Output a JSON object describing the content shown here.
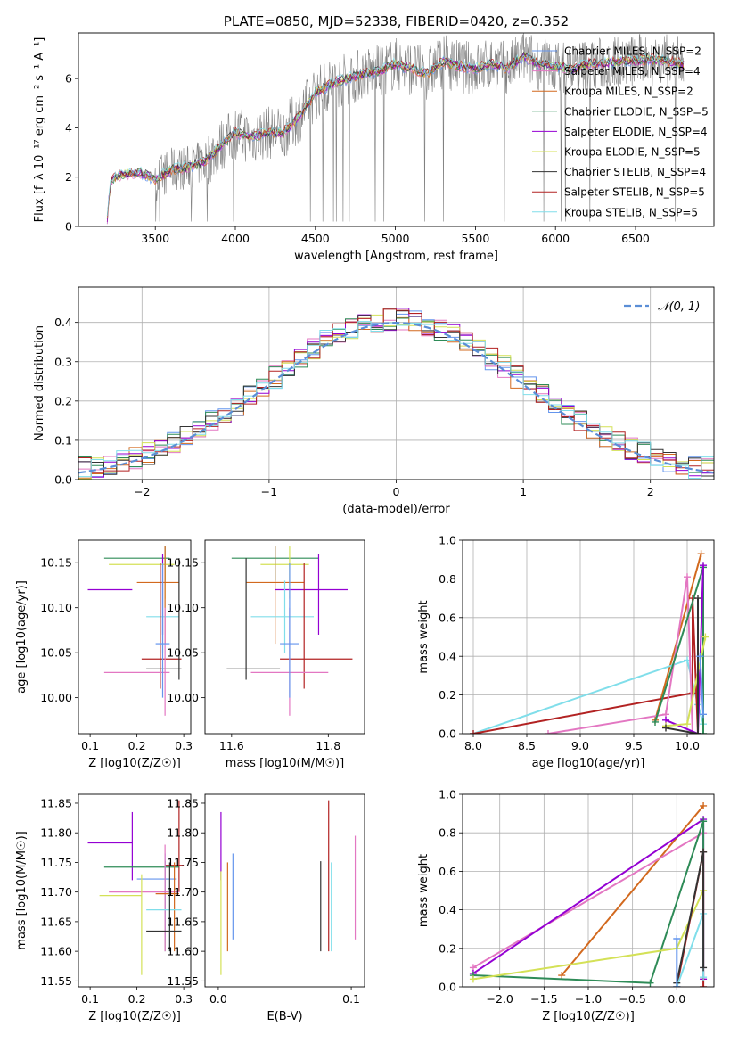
{
  "chart_data": [
    {
      "type": "line",
      "panel": "spectrum",
      "title": "PLATE=0850, MJD=52338, FIBERID=0420, z=0.352",
      "xlabel": "wavelength [Angstrom, rest frame]",
      "ylabel": "Flux [f_λ 10⁻¹⁷ erg cm⁻² s⁻¹ A⁻¹]",
      "xlim": [
        3020,
        6990
      ],
      "ylim": [
        0,
        7.85
      ],
      "x_ticks": [
        3500,
        4000,
        4500,
        5000,
        5500,
        6000,
        6500
      ],
      "y_ticks": [
        0,
        2,
        4,
        6
      ],
      "grid": false,
      "legend_position": "upper right",
      "data_color": "#808080",
      "continuum": {
        "x": [
          3200,
          3215,
          3230,
          3300,
          3400,
          3500,
          3600,
          3700,
          3800,
          3900,
          4000,
          4100,
          4200,
          4300,
          4400,
          4500,
          4600,
          4700,
          4800,
          4900,
          5000,
          5100,
          5200,
          5300,
          5400,
          5500,
          5600,
          5700,
          5800,
          5900,
          6000,
          6100,
          6200,
          6300,
          6400,
          6500,
          6600,
          6700,
          6800
        ],
        "y": [
          0.3,
          1.5,
          1.9,
          2.1,
          2.2,
          1.9,
          2.3,
          2.4,
          2.6,
          3.2,
          3.8,
          3.6,
          3.8,
          3.8,
          4.5,
          5.4,
          5.8,
          6.0,
          6.2,
          6.3,
          6.6,
          6.4,
          6.2,
          6.7,
          6.5,
          6.4,
          6.6,
          6.4,
          6.9,
          6.6,
          6.5,
          6.4,
          6.6,
          6.6,
          6.7,
          6.7,
          6.8,
          6.7,
          6.6
        ]
      },
      "series": [
        {
          "name": "Chabrier MILES, N_SSP=2",
          "color": "#6495ed"
        },
        {
          "name": "Salpeter MILES, N_SSP=4",
          "color": "#e377c2"
        },
        {
          "name": "Kroupa MILES, N_SSP=2",
          "color": "#d2691e"
        },
        {
          "name": "Chabrier ELODIE, N_SSP=5",
          "color": "#2e8b57"
        },
        {
          "name": "Salpeter ELODIE, N_SSP=4",
          "color": "#9400d3"
        },
        {
          "name": "Kroupa ELODIE, N_SSP=5",
          "color": "#d4e157"
        },
        {
          "name": "Chabrier STELIB, N_SSP=4",
          "color": "#333333"
        },
        {
          "name": "Salpeter STELIB, N_SSP=5",
          "color": "#b22222"
        },
        {
          "name": "Kroupa STELIB, N_SSP=5",
          "color": "#80deea"
        }
      ]
    },
    {
      "type": "step",
      "panel": "residuals",
      "xlabel": "(data-model)/error",
      "ylabel": "Normed distribution",
      "xlim": [
        -2.5,
        2.5
      ],
      "ylim": [
        0,
        0.49
      ],
      "x_ticks": [
        -2,
        -1,
        0,
        1,
        2
      ],
      "y_ticks": [
        0.0,
        0.1,
        0.2,
        0.3,
        0.4
      ],
      "grid": true,
      "legend_position": "upper right",
      "normal_label": "𝒩(0, 1)",
      "normal_color": "#5b8ed6",
      "bin_width": 0.1
    },
    {
      "type": "errorbar",
      "panel": "age-vs-Z",
      "xlabel": "Z [log10(Z/Z☉)]",
      "ylabel": "age  [log10(age/yr)]",
      "xlim": [
        0.075,
        0.315
      ],
      "ylim": [
        9.96,
        10.175
      ],
      "x_ticks": [
        0.1,
        0.2,
        0.3
      ],
      "y_ticks": [
        10.0,
        10.05,
        10.1,
        10.15
      ],
      "points": [
        {
          "x": 0.26,
          "y": 10.155,
          "xerr": [
            0.13,
            0.27
          ],
          "yerr": [
            10.13,
            10.168
          ],
          "color": "#2e8b57"
        },
        {
          "x": 0.26,
          "y": 10.148,
          "xerr": [
            0.14,
            0.28
          ],
          "yerr": [
            10.11,
            10.16
          ],
          "color": "#d4e157"
        },
        {
          "x": 0.26,
          "y": 10.128,
          "xerr": [
            0.2,
            0.29
          ],
          "yerr": [
            10.06,
            10.168
          ],
          "color": "#d2691e"
        },
        {
          "x": 0.255,
          "y": 10.12,
          "xerr": [
            0.095,
            0.19
          ],
          "yerr": [
            10.07,
            10.16
          ],
          "color": "#9400d3"
        },
        {
          "x": 0.255,
          "y": 10.09,
          "xerr": [
            0.22,
            0.29
          ],
          "yerr": [
            10.05,
            10.13
          ],
          "color": "#80deea"
        },
        {
          "x": 0.25,
          "y": 10.043,
          "xerr": [
            0.21,
            0.295
          ],
          "yerr": [
            10.01,
            10.15
          ],
          "color": "#b22222"
        },
        {
          "x": 0.29,
          "y": 10.032,
          "xerr": [
            0.22,
            0.295
          ],
          "yerr": [
            10.02,
            10.155
          ],
          "color": "#333333"
        },
        {
          "x": 0.26,
          "y": 10.028,
          "xerr": [
            0.13,
            0.27
          ],
          "yerr": [
            9.98,
            10.1
          ],
          "color": "#e377c2"
        },
        {
          "x": 0.255,
          "y": 10.06,
          "xerr": [
            0.24,
            0.27
          ],
          "yerr": [
            10.0,
            10.15
          ],
          "color": "#6495ed"
        }
      ]
    },
    {
      "type": "errorbar",
      "panel": "age-vs-mass",
      "xlabel": "mass [log10(M/M☉)]",
      "xlim": [
        11.545,
        11.875
      ],
      "ylim": [
        9.96,
        10.175
      ],
      "x_ticks": [
        11.6,
        11.8
      ],
      "y_ticks": [
        10.0,
        10.05,
        10.1,
        10.15
      ],
      "points": [
        {
          "x": 11.69,
          "y": 10.155,
          "xerr": [
            11.6,
            11.78
          ],
          "yerr": [
            10.13,
            10.168
          ],
          "color": "#2e8b57"
        },
        {
          "x": 11.72,
          "y": 10.148,
          "xerr": [
            11.66,
            11.76
          ],
          "yerr": [
            10.11,
            10.168
          ],
          "color": "#d4e157"
        },
        {
          "x": 11.69,
          "y": 10.128,
          "xerr": [
            11.63,
            11.75
          ],
          "yerr": [
            10.06,
            10.168
          ],
          "color": "#d2691e"
        },
        {
          "x": 11.78,
          "y": 10.12,
          "xerr": [
            11.69,
            11.84
          ],
          "yerr": [
            10.07,
            10.16
          ],
          "color": "#9400d3"
        },
        {
          "x": 11.71,
          "y": 10.09,
          "xerr": [
            11.64,
            11.77
          ],
          "yerr": [
            10.05,
            10.13
          ],
          "color": "#80deea"
        },
        {
          "x": 11.75,
          "y": 10.043,
          "xerr": [
            11.7,
            11.85
          ],
          "yerr": [
            10.01,
            10.15
          ],
          "color": "#b22222"
        },
        {
          "x": 11.63,
          "y": 10.032,
          "xerr": [
            11.59,
            11.7
          ],
          "yerr": [
            10.02,
            10.155
          ],
          "color": "#333333"
        },
        {
          "x": 11.72,
          "y": 10.028,
          "xerr": [
            11.64,
            11.8
          ],
          "yerr": [
            9.98,
            10.1
          ],
          "color": "#e377c2"
        },
        {
          "x": 11.72,
          "y": 10.06,
          "xerr": [
            11.7,
            11.74
          ],
          "yerr": [
            10.0,
            10.15
          ],
          "color": "#6495ed"
        }
      ]
    },
    {
      "type": "line",
      "panel": "massweight-vs-age",
      "xlabel": "age  [log10(age/yr)]",
      "ylabel": "mass weight",
      "xlim": [
        7.9,
        10.25
      ],
      "ylim": [
        0,
        1.0
      ],
      "x_ticks": [
        8.0,
        8.5,
        9.0,
        9.5,
        10.0
      ],
      "y_ticks": [
        0.0,
        0.2,
        0.4,
        0.6,
        0.8,
        1.0
      ],
      "grid": true,
      "series": [
        {
          "color": "#d2691e",
          "x": [
            9.7,
            10.13
          ],
          "y": [
            0.07,
            0.93
          ]
        },
        {
          "color": "#80deea",
          "x": [
            8.0,
            10.0,
            10.1,
            10.15
          ],
          "y": [
            0.0,
            0.38,
            0.15,
            0.05
          ]
        },
        {
          "color": "#b22222",
          "x": [
            8.0,
            10.05,
            10.05,
            10.1
          ],
          "y": [
            0.0,
            0.21,
            0.7,
            0.0
          ]
        },
        {
          "color": "#e377c2",
          "x": [
            8.7,
            9.8,
            10.0,
            10.05
          ],
          "y": [
            0.0,
            0.1,
            0.81,
            0.0
          ]
        },
        {
          "color": "#2e8b57",
          "x": [
            9.7,
            10.15,
            10.15
          ],
          "y": [
            0.06,
            0.86,
            0.0
          ]
        },
        {
          "color": "#9400d3",
          "x": [
            9.8,
            10.1,
            10.15
          ],
          "y": [
            0.07,
            0.0,
            0.87
          ]
        },
        {
          "color": "#d4e157",
          "x": [
            9.8,
            10.0,
            10.17
          ],
          "y": [
            0.04,
            0.05,
            0.5
          ]
        },
        {
          "color": "#333333",
          "x": [
            9.8,
            10.1,
            10.1
          ],
          "y": [
            0.03,
            0.0,
            0.7
          ]
        },
        {
          "color": "#6495ed",
          "x": [
            10.12,
            10.15
          ],
          "y": [
            0.4,
            0.1
          ]
        }
      ]
    },
    {
      "type": "errorbar",
      "panel": "mass-vs-Z",
      "xlabel": "Z [log10(Z/Z☉)]",
      "ylabel": "mass [log10(M/M☉)]",
      "xlim": [
        0.075,
        0.315
      ],
      "ylim": [
        11.54,
        11.865
      ],
      "x_ticks": [
        0.1,
        0.2,
        0.3
      ],
      "y_ticks": [
        11.55,
        11.6,
        11.65,
        11.7,
        11.75,
        11.8,
        11.85
      ],
      "points": [
        {
          "x": 0.19,
          "y": 11.783,
          "xerr": [
            0.095,
            0.19
          ],
          "yerr": [
            11.72,
            11.835
          ],
          "color": "#9400d3"
        },
        {
          "x": 0.29,
          "y": 11.745,
          "xerr": [
            0.26,
            0.3
          ],
          "yerr": [
            11.7,
            11.855
          ],
          "color": "#b22222"
        },
        {
          "x": 0.26,
          "y": 11.742,
          "xerr": [
            0.13,
            0.29
          ],
          "yerr": [
            11.6,
            11.752
          ],
          "color": "#2e8b57"
        },
        {
          "x": 0.26,
          "y": 11.722,
          "xerr": [
            0.2,
            0.285
          ],
          "yerr": [
            11.62,
            11.765
          ],
          "color": "#6495ed"
        },
        {
          "x": 0.26,
          "y": 11.7,
          "xerr": [
            0.14,
            0.29
          ],
          "yerr": [
            11.6,
            11.78
          ],
          "color": "#e377c2"
        },
        {
          "x": 0.21,
          "y": 11.694,
          "xerr": [
            0.12,
            0.21
          ],
          "yerr": [
            11.56,
            11.73
          ],
          "color": "#d4e157"
        },
        {
          "x": 0.28,
          "y": 11.697,
          "xerr": [
            0.24,
            0.29
          ],
          "yerr": [
            11.6,
            11.75
          ],
          "color": "#d2691e"
        },
        {
          "x": 0.27,
          "y": 11.67,
          "xerr": [
            0.22,
            0.295
          ],
          "yerr": [
            11.6,
            11.72
          ],
          "color": "#80deea"
        },
        {
          "x": 0.27,
          "y": 11.634,
          "xerr": [
            0.22,
            0.295
          ],
          "yerr": [
            11.6,
            11.75
          ],
          "color": "#333333"
        }
      ]
    },
    {
      "type": "errorbar",
      "panel": "mass-vs-EBV",
      "xlabel": "E(B-V)",
      "xlim": [
        -0.01,
        0.11
      ],
      "ylim": [
        11.54,
        11.865
      ],
      "x_ticks": [
        0.0,
        0.1
      ],
      "y_ticks": [
        11.55,
        11.6,
        11.65,
        11.7,
        11.75,
        11.8,
        11.85
      ],
      "points": [
        {
          "x": 0.002,
          "y": 11.78,
          "yerr": [
            11.72,
            11.835
          ],
          "color": "#9400d3"
        },
        {
          "x": 0.002,
          "y": 11.7,
          "yerr": [
            11.56,
            11.735
          ],
          "color": "#d4e157"
        },
        {
          "x": 0.007,
          "y": 11.7,
          "yerr": [
            11.6,
            11.75
          ],
          "color": "#d2691e"
        },
        {
          "x": 0.011,
          "y": 11.72,
          "yerr": [
            11.62,
            11.765
          ],
          "color": "#6495ed"
        },
        {
          "x": 0.077,
          "y": 11.68,
          "yerr": [
            11.6,
            11.752
          ],
          "color": "#333333"
        },
        {
          "x": 0.083,
          "y": 11.73,
          "yerr": [
            11.6,
            11.855
          ],
          "color": "#b22222"
        },
        {
          "x": 0.085,
          "y": 11.68,
          "yerr": [
            11.6,
            11.75
          ],
          "color": "#80deea"
        },
        {
          "x": 0.103,
          "y": 11.72,
          "yerr": [
            11.62,
            11.795
          ],
          "color": "#e377c2"
        }
      ]
    },
    {
      "type": "line",
      "panel": "massweight-vs-Z",
      "xlabel": "Z [log10(Z/Z☉)]",
      "ylabel": "mass weight",
      "xlim": [
        -2.42,
        0.42
      ],
      "ylim": [
        0,
        1.0
      ],
      "x_ticks": [
        -2.0,
        -1.5,
        -1.0,
        -0.5,
        0.0
      ],
      "y_ticks": [
        0.0,
        0.2,
        0.4,
        0.6,
        0.8,
        1.0
      ],
      "grid": true,
      "series": [
        {
          "color": "#d2691e",
          "x": [
            -1.3,
            0.3
          ],
          "y": [
            0.06,
            0.94
          ]
        },
        {
          "color": "#e377c2",
          "x": [
            -2.3,
            0.3
          ],
          "y": [
            0.1,
            0.8
          ]
        },
        {
          "color": "#9400d3",
          "x": [
            -2.3,
            0.3,
            0.3
          ],
          "y": [
            0.07,
            0.87,
            0.04
          ]
        },
        {
          "color": "#2e8b57",
          "x": [
            -2.3,
            -0.3,
            0.3,
            0.3
          ],
          "y": [
            0.06,
            0.02,
            0.86,
            0.7
          ]
        },
        {
          "color": "#d4e157",
          "x": [
            -2.3,
            0.0,
            0.3
          ],
          "y": [
            0.04,
            0.2,
            0.5
          ]
        },
        {
          "color": "#b22222",
          "x": [
            0.0,
            0.3,
            0.3
          ],
          "y": [
            0.0,
            0.7,
            0.0
          ]
        },
        {
          "color": "#80deea",
          "x": [
            0.0,
            0.3,
            0.3
          ],
          "y": [
            0.0,
            0.38,
            0.05
          ]
        },
        {
          "color": "#333333",
          "x": [
            0.0,
            0.3,
            0.3
          ],
          "y": [
            0.02,
            0.7,
            0.1
          ]
        },
        {
          "color": "#6495ed",
          "x": [
            0.0,
            0.0
          ],
          "y": [
            0.0,
            0.25
          ]
        }
      ]
    }
  ]
}
